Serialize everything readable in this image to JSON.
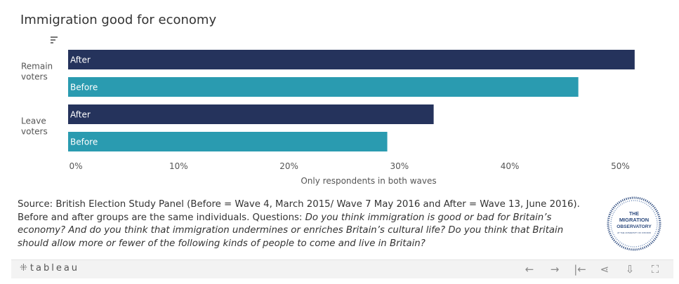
{
  "title": "Immigration good for economy",
  "chart_data": {
    "type": "bar",
    "orientation": "horizontal",
    "groups": [
      {
        "label": [
          "Remain",
          "voters"
        ],
        "bars": [
          {
            "name": "After",
            "value": 51.3
          },
          {
            "name": "Before",
            "value": 46.2
          }
        ]
      },
      {
        "label": [
          "Leave",
          "voters"
        ],
        "bars": [
          {
            "name": "After",
            "value": 33.1
          },
          {
            "name": "Before",
            "value": 28.9
          }
        ]
      }
    ],
    "xticks": [
      "0%",
      "10%",
      "20%",
      "30%",
      "40%",
      "50%"
    ],
    "xlabel": "Only respondents in both waves",
    "xlim": [
      0,
      51.5
    ],
    "colors": {
      "After": "#25335c",
      "Before": "#2a9bb0"
    },
    "grid": false
  },
  "source": {
    "plain": "Source: British Election Study Panel (Before = Wave 4, March 2015/ Wave 7 May 2016 and After = Wave 13, June 2016). Before and after groups are the same individuals. Questions: ",
    "italic": "Do you think immigration is good or bad for Britain’s economy? And do you think that immigration undermines or enriches Britain’s cultural life? Do you think that Britain should allow more or fewer of the following kinds of people to come and live in Britain?"
  },
  "logo": {
    "lines": [
      "THE",
      "MIGRATION",
      "OBSERVATORY"
    ],
    "subline": "AT THE UNIVERSITY OF OXFORD",
    "color": "#2c4a7e"
  },
  "toolbar": {
    "brand": "tableau",
    "icons": [
      "undo-icon",
      "redo-icon",
      "revert-icon",
      "share-icon",
      "download-icon",
      "fullscreen-icon"
    ],
    "glyphs": [
      "←",
      "→",
      "|←",
      "⋖",
      "⇩",
      "⛶"
    ]
  }
}
